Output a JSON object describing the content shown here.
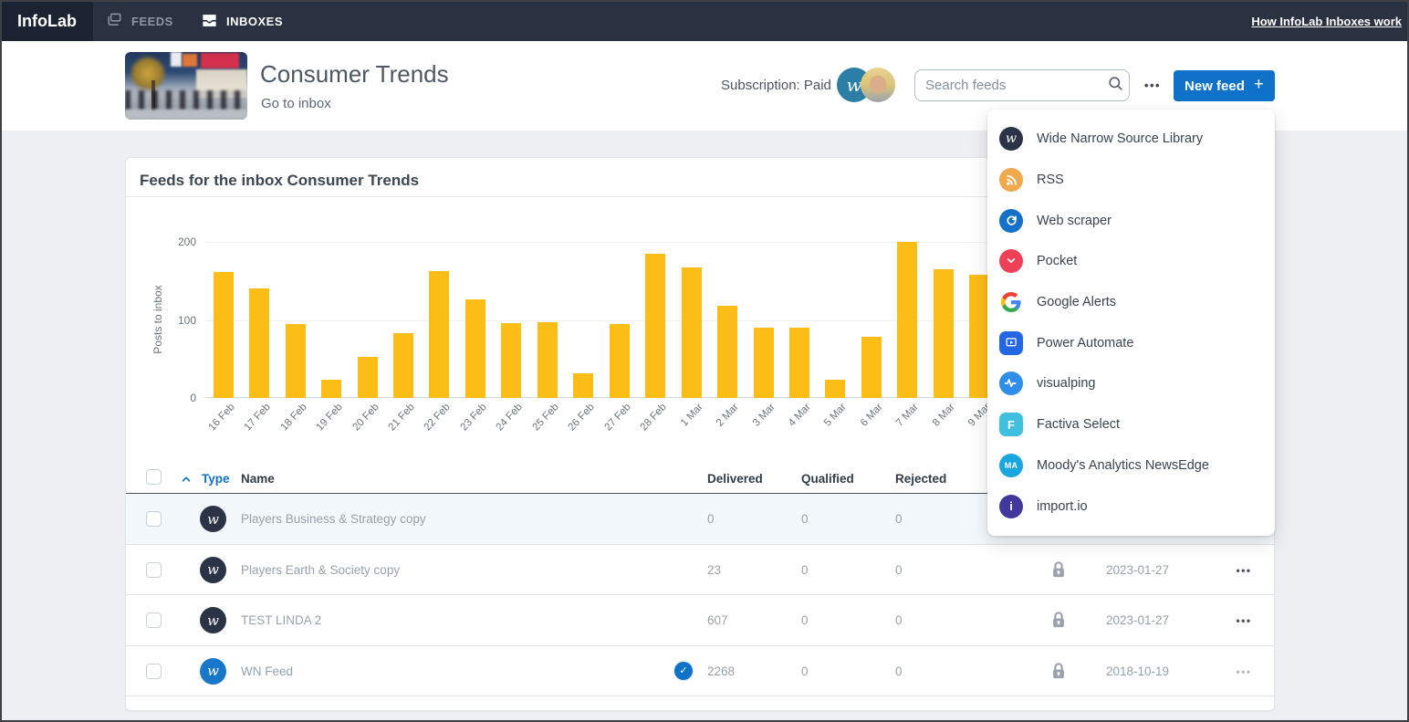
{
  "colors": {
    "accent_blue": "#0f72c8",
    "bar_yellow": "#fcbd17",
    "topnav_bg": "#2a3140",
    "row_highlight": "#f3f8fc"
  },
  "topnav": {
    "brand": "InfoLab",
    "tabs": [
      {
        "label": "FEEDS",
        "active": false
      },
      {
        "label": "INBOXES",
        "active": true
      }
    ],
    "help_link": "How InfoLab Inboxes work"
  },
  "header": {
    "title": "Consumer Trends",
    "go_to_inbox": "Go to inbox",
    "subscription": "Subscription: Paid",
    "search_placeholder": "Search feeds",
    "new_feed_label": "New feed",
    "avatar_glyph": "w"
  },
  "source_menu": {
    "items": [
      {
        "label": "Wide Narrow Source Library",
        "icon": "wide-narrow",
        "bg": "#2b3447",
        "shape": "circle"
      },
      {
        "label": "RSS",
        "icon": "rss",
        "bg": "#efa94d",
        "shape": "circle"
      },
      {
        "label": "Web scraper",
        "icon": "web-scraper",
        "bg": "#1470c8",
        "shape": "circle"
      },
      {
        "label": "Pocket",
        "icon": "pocket",
        "bg": "#ee4056",
        "shape": "circle"
      },
      {
        "label": "Google Alerts",
        "icon": "google",
        "bg": "transparent",
        "shape": "circle"
      },
      {
        "label": "Power Automate",
        "icon": "power-automate",
        "bg": "#2467e2",
        "shape": "square"
      },
      {
        "label": "visualping",
        "icon": "visualping",
        "bg": "#2e8ee8",
        "shape": "circle"
      },
      {
        "label": "Factiva Select",
        "icon": "factiva",
        "bg": "#3fc0de",
        "shape": "square"
      },
      {
        "label": "Moody's Analytics NewsEdge",
        "icon": "moodys",
        "bg": "#18a6de",
        "shape": "circle"
      },
      {
        "label": "import.io",
        "icon": "importio",
        "bg": "#41389b",
        "shape": "circle"
      }
    ]
  },
  "card": {
    "title": "Feeds for the inbox Consumer Trends"
  },
  "chart_data": {
    "type": "bar",
    "title": "Feeds for the inbox Consumer Trends",
    "xlabel": "",
    "ylabel": "Posts to inbox",
    "categories": [
      "16 Feb",
      "17 Feb",
      "18 Feb",
      "19 Feb",
      "20 Feb",
      "21 Feb",
      "22 Feb",
      "23 Feb",
      "24 Feb",
      "25 Feb",
      "26 Feb",
      "27 Feb",
      "28 Feb",
      "1 Mar",
      "2 Mar",
      "3 Mar",
      "4 Mar",
      "5 Mar",
      "6 Mar",
      "7 Mar",
      "8 Mar",
      "9 Mar"
    ],
    "values": [
      161,
      140,
      95,
      23,
      53,
      83,
      163,
      126,
      96,
      97,
      32,
      95,
      185,
      167,
      118,
      90,
      90,
      23,
      78,
      200,
      165,
      158
    ],
    "ylim": [
      0,
      200
    ],
    "yticks": [
      0,
      100,
      200
    ],
    "bar_color": "#fcbd17",
    "grid": true,
    "legend": false
  },
  "table": {
    "columns": [
      "Type",
      "Name",
      "Delivered",
      "Qualified",
      "Rejected"
    ],
    "rows": [
      {
        "name": "Players Business & Strategy copy",
        "icon_bg": "#2b3447",
        "delivered": "0",
        "qualified": "0",
        "rejected": "0",
        "verified": false,
        "locked": false,
        "date": "",
        "highlighted": true,
        "show_actions": false,
        "actions_muted": false
      },
      {
        "name": "Players Earth & Society copy",
        "icon_bg": "#2b3447",
        "delivered": "23",
        "qualified": "0",
        "rejected": "0",
        "verified": false,
        "locked": true,
        "date": "2023-01-27",
        "highlighted": false,
        "show_actions": true,
        "actions_muted": false
      },
      {
        "name": "TEST LINDA 2",
        "icon_bg": "#2b3447",
        "delivered": "607",
        "qualified": "0",
        "rejected": "0",
        "verified": false,
        "locked": true,
        "date": "2023-01-27",
        "highlighted": false,
        "show_actions": true,
        "actions_muted": false
      },
      {
        "name": "WN Feed",
        "icon_bg": "#1877c9",
        "delivered": "2268",
        "qualified": "0",
        "rejected": "0",
        "verified": true,
        "locked": true,
        "date": "2018-10-19",
        "highlighted": false,
        "show_actions": true,
        "actions_muted": true
      }
    ]
  }
}
